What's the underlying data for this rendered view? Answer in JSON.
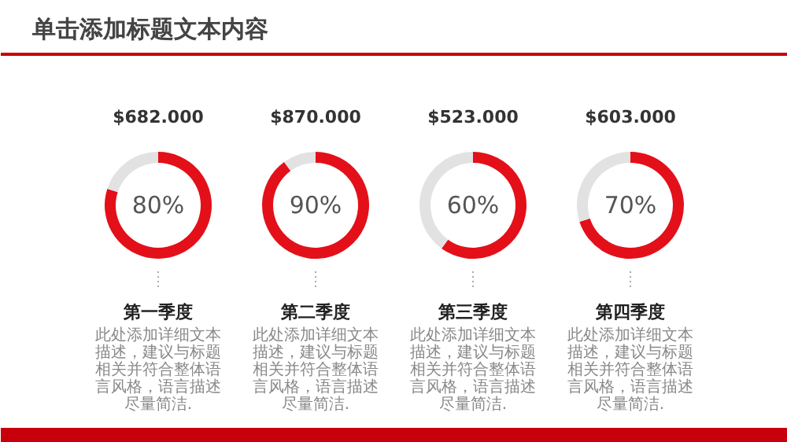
{
  "chart_data": [
    {
      "type": "other",
      "title": "单击添加标题文本内容"
    },
    {
      "type": "donut",
      "title": "$682.000",
      "xlabel": "第一季度",
      "categories": [
        null,
        null
      ],
      "values": [
        80,
        20
      ],
      "colors": [
        "#e3101a",
        "#e2e2e2"
      ],
      "value_labels": [
        "80%",
        null
      ],
      "annotations": [
        "此处添加详细文本描述，建议与标题相关并符合整体语言风格，语言描述尽量简洁."
      ]
    },
    {
      "type": "donut",
      "title": "$870.000",
      "xlabel": "第二季度",
      "categories": [
        null,
        null
      ],
      "values": [
        90,
        10
      ],
      "colors": [
        "#e3101a",
        "#e2e2e2"
      ],
      "value_labels": [
        "90%",
        null
      ],
      "annotations": [
        "此处添加详细文本描述，建议与标题相关并符合整体语言风格，语言描述尽量简洁."
      ]
    },
    {
      "type": "donut",
      "title": "$523.000",
      "xlabel": "第三季度",
      "categories": [
        null,
        null
      ],
      "values": [
        60,
        40
      ],
      "colors": [
        "#e3101a",
        "#e2e2e2"
      ],
      "value_labels": [
        "60%",
        null
      ],
      "annotations": [
        "此处添加详细文本描述，建议与标题相关并符合整体语言风格，语言描述尽量简洁."
      ]
    },
    {
      "type": "donut",
      "title": "$603.000",
      "xlabel": "第四季度",
      "categories": [
        null,
        null
      ],
      "values": [
        70,
        30
      ],
      "colors": [
        "#e3101a",
        "#e2e2e2"
      ],
      "value_labels": [
        "70%",
        null
      ],
      "annotations": [
        "此处添加详细文本描述，建议与标题相关并符合整体语言风格，语言描述尽量简洁."
      ]
    }
  ]
}
